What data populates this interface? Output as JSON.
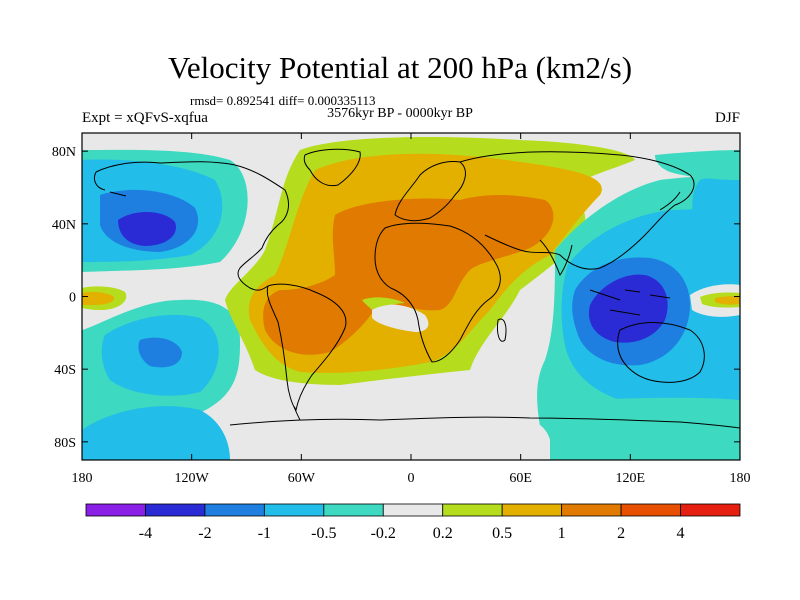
{
  "map": {
    "title": "Velocity Potential at 200 hPa (km2/s)",
    "stats_line": "rmsd= 0.892541 diff= 0.000335113",
    "experiment": "Expt = xQFvS-xqfua",
    "period": "3576kyr BP - 0000kyr BP",
    "season": "DJF",
    "lat_ticks": [
      "80N",
      "40N",
      "0",
      "40S",
      "80S"
    ],
    "lon_ticks": [
      "180",
      "120W",
      "60W",
      "0",
      "60E",
      "120E",
      "180"
    ],
    "lat_values": [
      80,
      40,
      0,
      -40,
      -80
    ],
    "lon_values": [
      -180,
      -120,
      -60,
      0,
      60,
      120,
      180
    ]
  },
  "legend": {
    "labels": [
      "-4",
      "-2",
      "-1",
      "-0.5",
      "-0.2",
      "0.2",
      "0.5",
      "1",
      "2",
      "4"
    ],
    "colors": [
      "#8a1fe6",
      "#2b2bd6",
      "#1f7fe0",
      "#22bde8",
      "#3dd9c0",
      "#e8e8e8",
      "#b6dc1e",
      "#e3b000",
      "#e07a00",
      "#e65000",
      "#e62010"
    ]
  }
}
